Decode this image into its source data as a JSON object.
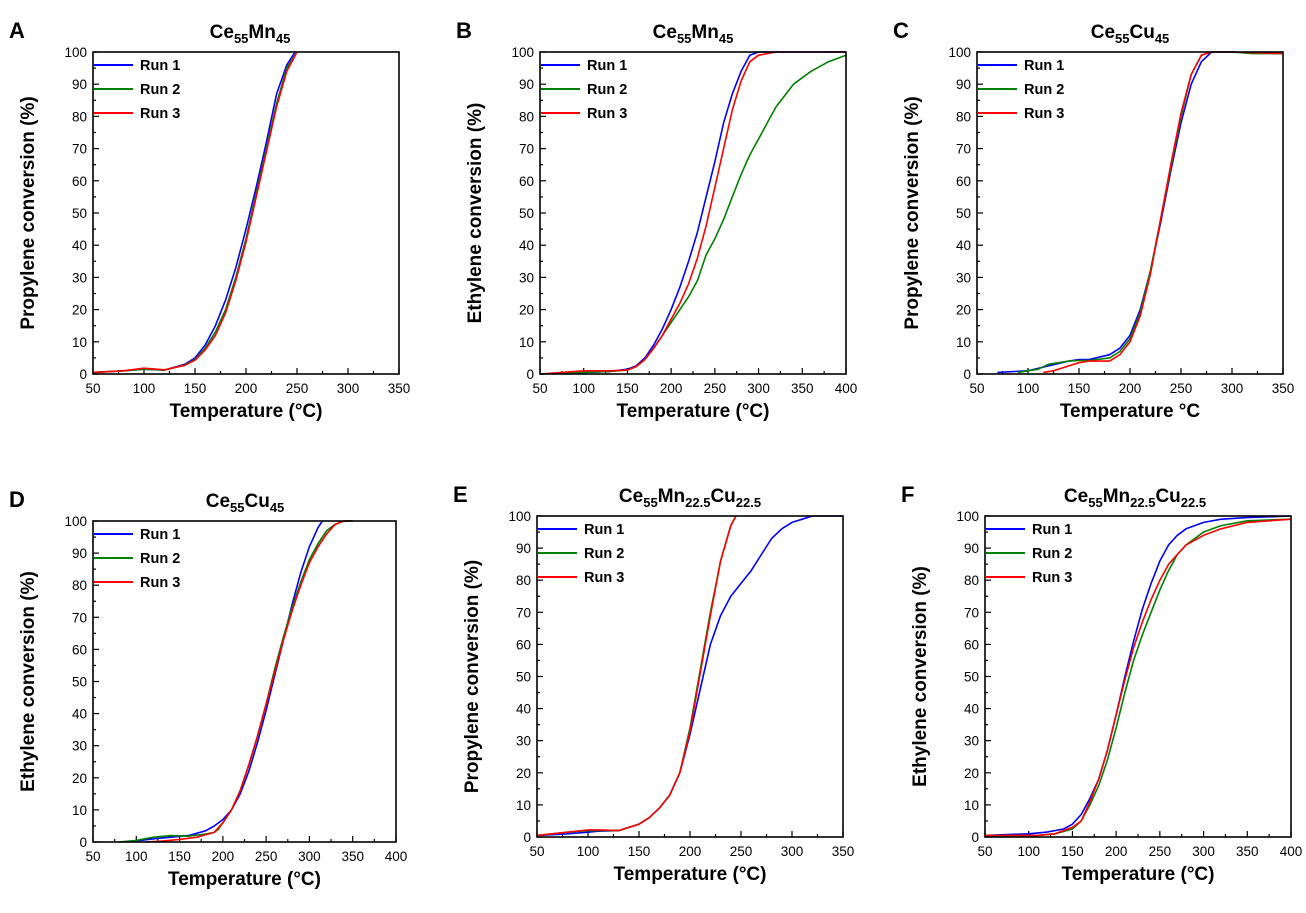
{
  "chart_data": [
    {
      "type": "line",
      "panel": "A",
      "title": "Ce55Mn45",
      "title_parts": [
        [
          "Ce",
          ""
        ],
        [
          "55",
          "sub"
        ],
        [
          "Mn",
          ""
        ],
        [
          "45",
          "sub"
        ]
      ],
      "xlabel": "Temperature (°C)",
      "ylabel": "Propylene conversion (%)",
      "xlim": [
        50,
        350
      ],
      "ylim": [
        0,
        100
      ],
      "xticks": [
        50,
        100,
        150,
        200,
        250,
        300,
        350
      ],
      "yticks": [
        0,
        10,
        20,
        30,
        40,
        50,
        60,
        70,
        80,
        90,
        100
      ],
      "legend": "top-left",
      "series": [
        {
          "name": "Run 1",
          "color": "#0000ff",
          "x": [
            50,
            80,
            100,
            120,
            140,
            150,
            160,
            170,
            180,
            190,
            200,
            210,
            220,
            230,
            240,
            248
          ],
          "y": [
            0.5,
            1,
            1.5,
            1.2,
            3,
            5,
            9,
            15,
            23,
            33,
            45,
            58,
            72,
            87,
            96,
            100
          ]
        },
        {
          "name": "Run 2",
          "color": "#008000",
          "x": [
            50,
            80,
            100,
            120,
            140,
            150,
            160,
            170,
            180,
            190,
            200,
            210,
            220,
            230,
            240,
            250
          ],
          "y": [
            0.5,
            1,
            1.5,
            1.2,
            2.8,
            4.5,
            8,
            13,
            20,
            30,
            42,
            56,
            70,
            84,
            95,
            100
          ]
        },
        {
          "name": "Run 3",
          "color": "#ff0000",
          "x": [
            50,
            80,
            100,
            120,
            140,
            150,
            160,
            170,
            180,
            190,
            200,
            210,
            220,
            230,
            240,
            250
          ],
          "y": [
            0.5,
            1,
            1.8,
            1.3,
            2.7,
            4.3,
            7.5,
            12,
            19,
            29,
            41,
            55,
            69,
            83,
            94,
            100
          ]
        }
      ]
    },
    {
      "type": "line",
      "panel": "B",
      "title": "Ce55Mn45",
      "title_parts": [
        [
          "Ce",
          ""
        ],
        [
          "55",
          "sub"
        ],
        [
          "Mn",
          ""
        ],
        [
          "45",
          "sub"
        ]
      ],
      "xlabel": "Temperature (°C)",
      "ylabel": "Ethylene conversion (%)",
      "xlim": [
        50,
        400
      ],
      "ylim": [
        0,
        100
      ],
      "xticks": [
        50,
        100,
        150,
        200,
        250,
        300,
        350,
        400
      ],
      "yticks": [
        0,
        10,
        20,
        30,
        40,
        50,
        60,
        70,
        80,
        90,
        100
      ],
      "legend": "top-left",
      "series": [
        {
          "name": "Run 1",
          "color": "#0000ff",
          "x": [
            50,
            100,
            130,
            150,
            160,
            170,
            180,
            190,
            200,
            210,
            220,
            230,
            240,
            250,
            260,
            270,
            280,
            290,
            300,
            320,
            350,
            400
          ],
          "y": [
            0,
            0.5,
            0.8,
            1.5,
            2.5,
            5,
            9,
            14,
            20,
            27,
            35,
            44,
            55,
            66,
            78,
            87,
            94,
            99,
            100,
            100,
            100,
            100
          ]
        },
        {
          "name": "Run 2",
          "color": "#008000",
          "x": [
            50,
            100,
            130,
            150,
            160,
            170,
            180,
            190,
            200,
            210,
            220,
            230,
            240,
            250,
            260,
            270,
            280,
            290,
            300,
            310,
            320,
            340,
            360,
            380,
            400
          ],
          "y": [
            0,
            0.5,
            0.8,
            1.2,
            2.3,
            4.5,
            8,
            12,
            16,
            20,
            24,
            29,
            37,
            42,
            48,
            55,
            62,
            68,
            73,
            78,
            83,
            90,
            94,
            97,
            99
          ]
        },
        {
          "name": "Run 3",
          "color": "#ff0000",
          "x": [
            50,
            100,
            130,
            150,
            160,
            170,
            180,
            190,
            200,
            210,
            220,
            230,
            240,
            250,
            260,
            270,
            280,
            290,
            300,
            320,
            350,
            400
          ],
          "y": [
            0,
            1,
            1,
            1.2,
            2.3,
            4.5,
            8,
            12,
            17,
            22,
            28,
            36,
            46,
            58,
            70,
            82,
            91,
            97,
            99,
            100,
            100,
            100
          ]
        }
      ]
    },
    {
      "type": "line",
      "panel": "C",
      "title": "Ce55Cu45",
      "title_parts": [
        [
          "Ce",
          ""
        ],
        [
          "55",
          "sub"
        ],
        [
          "Cu",
          ""
        ],
        [
          "45",
          "sub"
        ]
      ],
      "xlabel": "Temperature °C",
      "ylabel": "Propylene conversion (%)",
      "xlim": [
        50,
        350
      ],
      "ylim": [
        0,
        100
      ],
      "xticks": [
        50,
        100,
        150,
        200,
        250,
        300,
        350
      ],
      "yticks": [
        0,
        10,
        20,
        30,
        40,
        50,
        60,
        70,
        80,
        90,
        100
      ],
      "legend": "top-left",
      "series": [
        {
          "name": "Run 1",
          "color": "#0000ff",
          "x": [
            70,
            100,
            120,
            140,
            150,
            160,
            180,
            190,
            200,
            210,
            220,
            230,
            240,
            250,
            260,
            270,
            280,
            290,
            300,
            350
          ],
          "y": [
            0.5,
            1,
            2.5,
            4,
            4.5,
            4.5,
            6,
            8,
            12,
            20,
            32,
            47,
            63,
            78,
            90,
            97,
            100,
            100,
            100,
            99.5
          ]
        },
        {
          "name": "Run 2",
          "color": "#008000",
          "x": [
            90,
            110,
            120,
            140,
            150,
            160,
            180,
            190,
            200,
            210,
            220,
            230,
            240,
            250,
            260,
            270,
            280,
            300,
            320,
            350
          ],
          "y": [
            0.5,
            1.5,
            3,
            4,
            4.2,
            4.2,
            5,
            7,
            11,
            19,
            32,
            48,
            64,
            80,
            93,
            99,
            100,
            100,
            99.5,
            99.5
          ]
        },
        {
          "name": "Run 3",
          "color": "#ff0000",
          "x": [
            115,
            125,
            140,
            150,
            160,
            170,
            180,
            190,
            200,
            210,
            220,
            230,
            240,
            250,
            260,
            270,
            280,
            300,
            350
          ],
          "y": [
            0.5,
            1,
            2.5,
            3.5,
            4,
            4,
            4,
            6,
            10,
            18,
            31,
            48,
            65,
            81,
            93,
            99,
            100,
            100,
            99.5
          ]
        }
      ]
    },
    {
      "type": "line",
      "panel": "D",
      "title": "Ce55Cu45",
      "title_parts": [
        [
          "Ce",
          ""
        ],
        [
          "55",
          "sub"
        ],
        [
          "Cu",
          ""
        ],
        [
          "45",
          "sub"
        ]
      ],
      "xlabel": "Temperature (°C)",
      "ylabel": "Ethylene conversion (%)",
      "xlim": [
        50,
        400
      ],
      "ylim": [
        0,
        100
      ],
      "xticks": [
        50,
        100,
        150,
        200,
        250,
        300,
        350,
        400
      ],
      "yticks": [
        0,
        10,
        20,
        30,
        40,
        50,
        60,
        70,
        80,
        90,
        100
      ],
      "legend": "top-left",
      "series": [
        {
          "name": "Run 1",
          "color": "#0000ff",
          "x": [
            90,
            120,
            140,
            160,
            180,
            190,
            200,
            210,
            220,
            230,
            240,
            250,
            260,
            270,
            280,
            290,
            300,
            310,
            315
          ],
          "y": [
            0,
            1,
            1.5,
            2,
            3.5,
            5,
            7,
            10,
            15,
            22,
            31,
            41,
            52,
            63,
            74,
            84,
            92,
            98,
            100
          ]
        },
        {
          "name": "Run 2",
          "color": "#008000",
          "x": [
            80,
            100,
            120,
            140,
            160,
            180,
            190,
            195,
            200,
            210,
            220,
            230,
            240,
            250,
            260,
            270,
            280,
            290,
            300,
            310,
            320,
            330,
            340,
            350
          ],
          "y": [
            0,
            0.5,
            1.5,
            2,
            1.8,
            2.5,
            3,
            4,
            6,
            10,
            16,
            24,
            33,
            43,
            54,
            64,
            73,
            81,
            88,
            93,
            97,
            99,
            100,
            100
          ]
        },
        {
          "name": "Run 3",
          "color": "#ff0000",
          "x": [
            110,
            130,
            150,
            170,
            190,
            200,
            210,
            220,
            230,
            240,
            250,
            260,
            270,
            280,
            290,
            300,
            310,
            320,
            330,
            340,
            350
          ],
          "y": [
            0,
            0.3,
            0.8,
            1.5,
            3,
            6,
            10,
            16,
            24,
            33,
            43,
            53,
            63,
            72,
            80,
            87,
            92,
            96,
            99,
            100,
            100
          ]
        }
      ]
    },
    {
      "type": "line",
      "panel": "E",
      "title": "Ce55Mn22.5Cu22.5",
      "title_parts": [
        [
          "Ce",
          ""
        ],
        [
          "55",
          "sub"
        ],
        [
          "Mn",
          ""
        ],
        [
          "22.5",
          "sub"
        ],
        [
          "Cu",
          ""
        ],
        [
          "22.5",
          "sub"
        ]
      ],
      "xlabel": "Temperature (°C)",
      "ylabel": "Propylene conversion (%)",
      "xlim": [
        50,
        350
      ],
      "ylim": [
        0,
        100
      ],
      "xticks": [
        50,
        100,
        150,
        200,
        250,
        300,
        350
      ],
      "yticks": [
        0,
        10,
        20,
        30,
        40,
        50,
        60,
        70,
        80,
        90,
        100
      ],
      "legend": "top-left",
      "series": [
        {
          "name": "Run 1",
          "color": "#0000ff",
          "x": [
            50,
            80,
            100,
            110,
            130,
            150,
            160,
            170,
            180,
            190,
            200,
            210,
            220,
            230,
            240,
            250,
            260,
            270,
            280,
            290,
            300,
            310,
            320,
            350
          ],
          "y": [
            0.5,
            1,
            1.5,
            1.8,
            2,
            4,
            6,
            9,
            13,
            20,
            32,
            46,
            60,
            69,
            75,
            79,
            83,
            88,
            93,
            96,
            98,
            99,
            100,
            100
          ]
        },
        {
          "name": "Run 2",
          "color": "#008000",
          "x": [
            50,
            80,
            100,
            110,
            130,
            150,
            160,
            170,
            180,
            190,
            200,
            210,
            220,
            230,
            240,
            245
          ],
          "y": [
            0.5,
            1.5,
            2,
            2,
            2,
            4,
            6,
            9,
            13,
            20,
            34,
            52,
            70,
            86,
            97,
            100
          ]
        },
        {
          "name": "Run 3",
          "color": "#ff0000",
          "x": [
            50,
            80,
            100,
            110,
            130,
            150,
            160,
            170,
            180,
            190,
            200,
            210,
            220,
            230,
            240,
            245
          ],
          "y": [
            0.5,
            1.5,
            2.2,
            2.2,
            2,
            4,
            6,
            9,
            13,
            20,
            33,
            51,
            69,
            86,
            97,
            100
          ]
        }
      ]
    },
    {
      "type": "line",
      "panel": "F",
      "title": "Ce55Mn22.5Cu22.5",
      "title_parts": [
        [
          "Ce",
          ""
        ],
        [
          "55",
          "sub"
        ],
        [
          "Mn",
          ""
        ],
        [
          "22.5",
          "sub"
        ],
        [
          "Cu",
          ""
        ],
        [
          "22.5",
          "sub"
        ]
      ],
      "xlabel": "Temperature (°C)",
      "ylabel": "Ethylene conversion (%)",
      "xlim": [
        50,
        400
      ],
      "ylim": [
        0,
        100
      ],
      "xticks": [
        50,
        100,
        150,
        200,
        250,
        300,
        350,
        400
      ],
      "yticks": [
        0,
        10,
        20,
        30,
        40,
        50,
        60,
        70,
        80,
        90,
        100
      ],
      "legend": "top-left",
      "series": [
        {
          "name": "Run 1",
          "color": "#0000ff",
          "x": [
            50,
            100,
            120,
            140,
            150,
            160,
            170,
            180,
            190,
            200,
            210,
            220,
            230,
            240,
            250,
            260,
            270,
            280,
            300,
            320,
            350,
            400
          ],
          "y": [
            0.5,
            1,
            1.5,
            2.5,
            4,
            7,
            12,
            18,
            27,
            38,
            50,
            61,
            71,
            79,
            86,
            91,
            94,
            96,
            98,
            99,
            99.5,
            100
          ]
        },
        {
          "name": "Run 2",
          "color": "#008000",
          "x": [
            50,
            110,
            130,
            150,
            160,
            170,
            180,
            190,
            200,
            210,
            220,
            230,
            240,
            250,
            260,
            270,
            280,
            300,
            320,
            350,
            400
          ],
          "y": [
            0.5,
            0.5,
            1,
            2.5,
            5,
            10,
            16,
            24,
            34,
            45,
            55,
            63,
            70,
            77,
            83,
            88,
            91,
            95,
            97,
            98.5,
            99
          ]
        },
        {
          "name": "Run 3",
          "color": "#ff0000",
          "x": [
            50,
            110,
            130,
            150,
            160,
            170,
            180,
            190,
            200,
            210,
            220,
            230,
            240,
            250,
            260,
            270,
            280,
            300,
            320,
            350,
            400
          ],
          "y": [
            0.5,
            0.5,
            1,
            3,
            5,
            11,
            18,
            27,
            38,
            49,
            59,
            67,
            74,
            80,
            85,
            88,
            91,
            94,
            96,
            98,
            99
          ]
        }
      ]
    }
  ]
}
